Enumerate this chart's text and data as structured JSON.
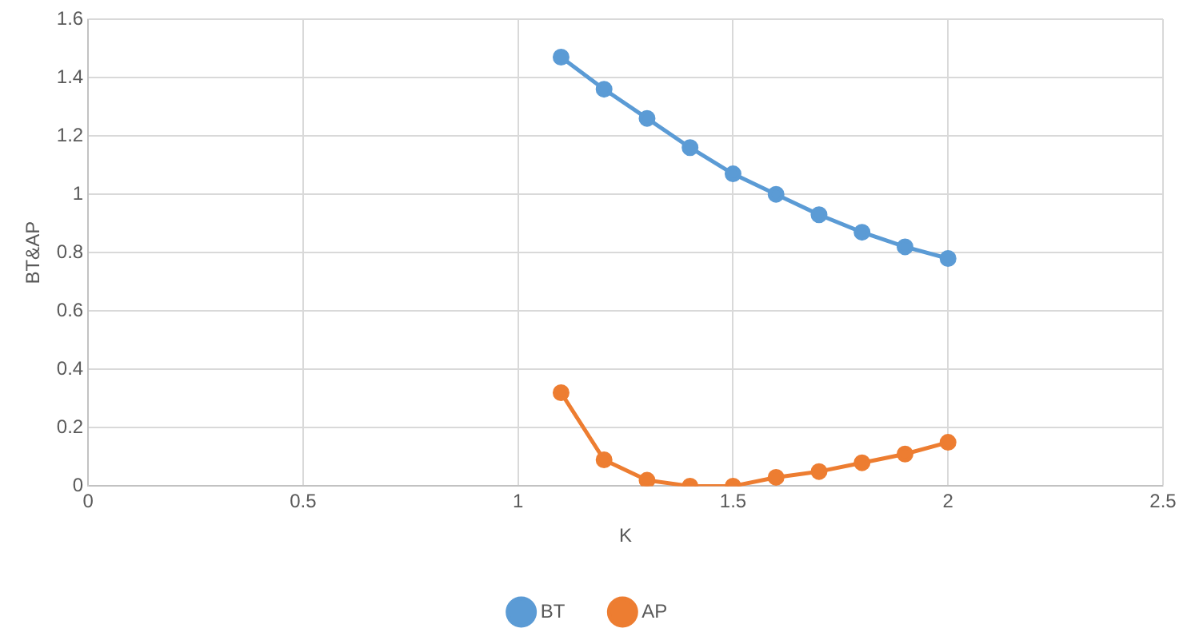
{
  "chart_data": {
    "type": "line",
    "xlabel": "K",
    "ylabel": "BT&AP",
    "x": [
      1.1,
      1.2,
      1.3,
      1.4,
      1.5,
      1.6,
      1.7,
      1.8,
      1.9,
      2.0
    ],
    "series": [
      {
        "name": "BT",
        "color": "#5b9bd5",
        "values": [
          1.47,
          1.36,
          1.26,
          1.16,
          1.07,
          1.0,
          0.93,
          0.87,
          0.82,
          0.78
        ]
      },
      {
        "name": "AP",
        "color": "#ed7d31",
        "values": [
          0.32,
          0.09,
          0.02,
          0,
          0,
          0.03,
          0.05,
          0.08,
          0.11,
          0.15
        ]
      }
    ],
    "xlim": [
      0,
      2.5
    ],
    "xticks": [
      0,
      0.5,
      1,
      1.5,
      2,
      2.5
    ],
    "ylim": [
      0,
      1.6
    ],
    "yticks": [
      0,
      0.2,
      0.4,
      0.6,
      0.8,
      1,
      1.2,
      1.4,
      1.6
    ],
    "grid": true,
    "legend": "bottom",
    "marker": "circle",
    "line_style": "solid"
  }
}
